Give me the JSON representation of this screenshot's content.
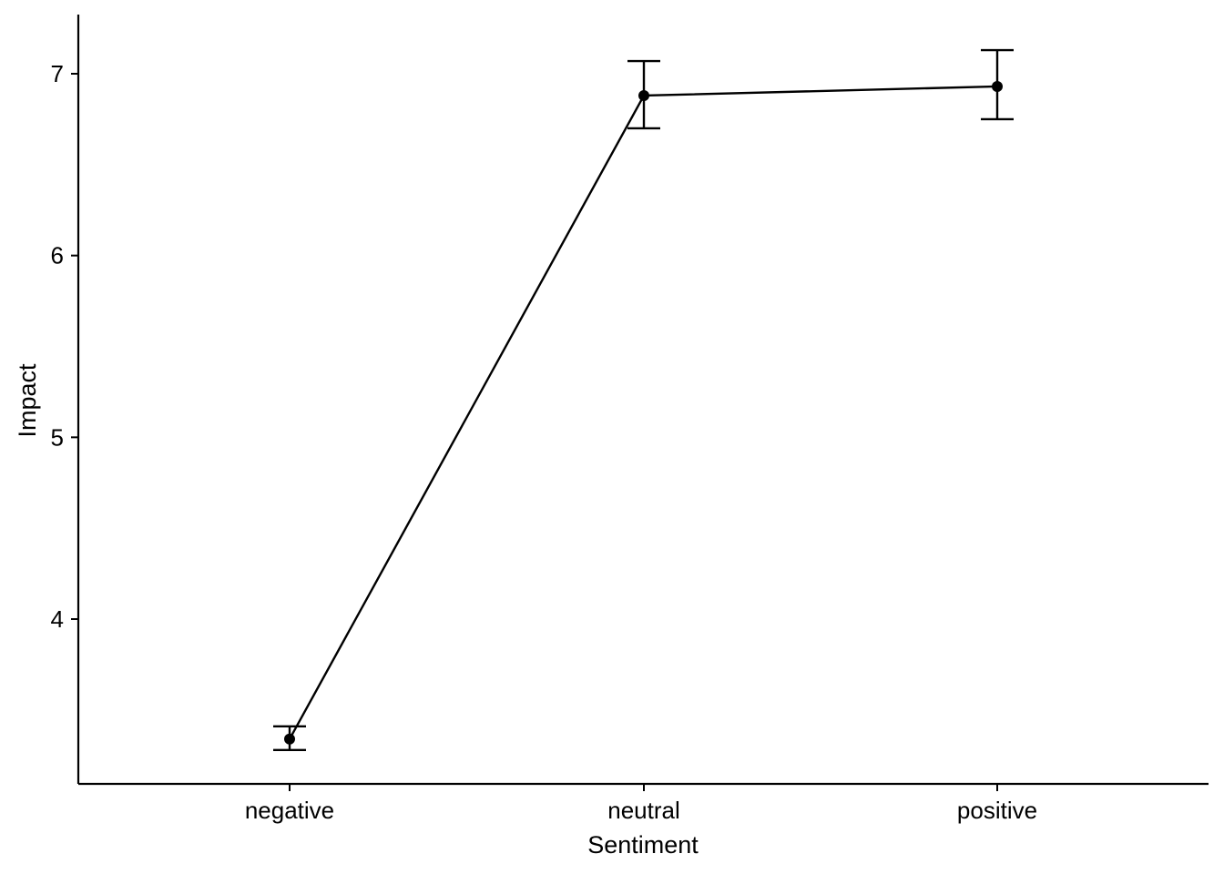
{
  "chart_data": {
    "type": "line",
    "title": "",
    "xlabel": "Sentiment",
    "ylabel": "Impact",
    "categories": [
      "negative",
      "neutral",
      "positive"
    ],
    "series": [
      {
        "name": "Impact",
        "values": [
          3.34,
          6.88,
          6.93
        ],
        "error_low": [
          3.28,
          6.7,
          6.75
        ],
        "error_high": [
          3.41,
          7.07,
          7.13
        ]
      }
    ],
    "y_ticks": [
      4,
      5,
      6,
      7
    ],
    "y_tick_labels": [
      "4",
      "5",
      "6",
      "7"
    ],
    "ylim": [
      3.1,
      7.32
    ],
    "grid": false,
    "legend": "none",
    "colors": {
      "line": "#000000",
      "axis": "#000000",
      "background": "#ffffff"
    }
  }
}
